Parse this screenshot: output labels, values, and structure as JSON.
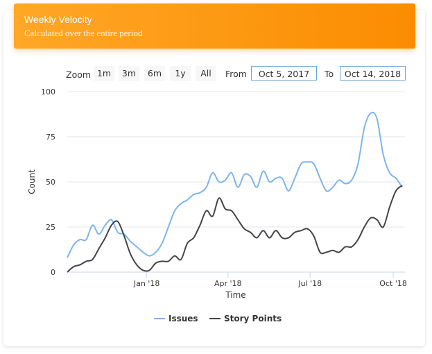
{
  "header": {
    "title": "Weekly Velocity",
    "subtitle": "Calculated over the entire period"
  },
  "range_selector": {
    "zoom_label": "Zoom",
    "buttons": [
      "1m",
      "3m",
      "6m",
      "1y",
      "All"
    ],
    "from_label": "From",
    "from_value": "Oct 5, 2017",
    "to_label": "To",
    "to_value": "Oct 14, 2018"
  },
  "chart_data": {
    "type": "line",
    "xlabel": "Time",
    "ylabel": "Count",
    "ylim": [
      0,
      100
    ],
    "yticks": [
      0,
      25,
      50,
      75,
      100
    ],
    "xlim": [
      "2017-10-05",
      "2018-10-14"
    ],
    "xticks": [
      {
        "date": "2018-01-01",
        "label": "Jan '18"
      },
      {
        "date": "2018-04-01",
        "label": "Apr '18"
      },
      {
        "date": "2018-07-01",
        "label": "Jul '18"
      },
      {
        "date": "2018-10-01",
        "label": "Oct '18"
      }
    ],
    "grid": true,
    "legend": "bottom-center",
    "series": [
      {
        "name": "Issues",
        "color": "#7cb5ec",
        "points": [
          [
            "2017-10-05",
            8
          ],
          [
            "2017-10-12",
            15
          ],
          [
            "2017-10-19",
            18
          ],
          [
            "2017-10-26",
            18
          ],
          [
            "2017-11-02",
            26
          ],
          [
            "2017-11-09",
            21
          ],
          [
            "2017-11-16",
            26
          ],
          [
            "2017-11-23",
            29
          ],
          [
            "2017-11-30",
            22
          ],
          [
            "2017-12-07",
            21
          ],
          [
            "2017-12-14",
            17
          ],
          [
            "2017-12-21",
            14
          ],
          [
            "2017-12-28",
            11
          ],
          [
            "2018-01-04",
            9
          ],
          [
            "2018-01-11",
            11
          ],
          [
            "2018-01-18",
            16
          ],
          [
            "2018-01-25",
            25
          ],
          [
            "2018-02-01",
            34
          ],
          [
            "2018-02-08",
            38
          ],
          [
            "2018-02-15",
            40
          ],
          [
            "2018-02-22",
            43
          ],
          [
            "2018-03-01",
            44
          ],
          [
            "2018-03-08",
            47
          ],
          [
            "2018-03-15",
            55
          ],
          [
            "2018-03-22",
            50
          ],
          [
            "2018-03-29",
            51
          ],
          [
            "2018-04-05",
            55
          ],
          [
            "2018-04-12",
            47
          ],
          [
            "2018-04-19",
            54
          ],
          [
            "2018-04-26",
            53
          ],
          [
            "2018-05-03",
            47
          ],
          [
            "2018-05-10",
            56
          ],
          [
            "2018-05-17",
            50
          ],
          [
            "2018-05-24",
            52
          ],
          [
            "2018-05-31",
            52
          ],
          [
            "2018-06-07",
            45
          ],
          [
            "2018-06-14",
            52
          ],
          [
            "2018-06-21",
            60
          ],
          [
            "2018-06-28",
            61
          ],
          [
            "2018-07-05",
            60
          ],
          [
            "2018-07-12",
            52
          ],
          [
            "2018-07-19",
            45
          ],
          [
            "2018-07-26",
            47
          ],
          [
            "2018-08-02",
            51
          ],
          [
            "2018-08-09",
            49
          ],
          [
            "2018-08-16",
            51
          ],
          [
            "2018-08-23",
            60
          ],
          [
            "2018-08-30",
            80
          ],
          [
            "2018-09-06",
            88
          ],
          [
            "2018-09-13",
            85
          ],
          [
            "2018-09-20",
            65
          ],
          [
            "2018-09-27",
            55
          ],
          [
            "2018-10-04",
            52
          ],
          [
            "2018-10-11",
            47
          ]
        ]
      },
      {
        "name": "Story Points",
        "color": "#434348",
        "points": [
          [
            "2017-10-05",
            0
          ],
          [
            "2017-10-12",
            3
          ],
          [
            "2017-10-19",
            4
          ],
          [
            "2017-10-26",
            6
          ],
          [
            "2017-11-02",
            7
          ],
          [
            "2017-11-09",
            13
          ],
          [
            "2017-11-16",
            19
          ],
          [
            "2017-11-23",
            26
          ],
          [
            "2017-11-30",
            28
          ],
          [
            "2017-12-07",
            20
          ],
          [
            "2017-12-14",
            10
          ],
          [
            "2017-12-21",
            4
          ],
          [
            "2017-12-28",
            1
          ],
          [
            "2018-01-04",
            1
          ],
          [
            "2018-01-11",
            5
          ],
          [
            "2018-01-18",
            6
          ],
          [
            "2018-01-25",
            6
          ],
          [
            "2018-02-01",
            9
          ],
          [
            "2018-02-08",
            7
          ],
          [
            "2018-02-15",
            16
          ],
          [
            "2018-02-22",
            19
          ],
          [
            "2018-03-01",
            26
          ],
          [
            "2018-03-08",
            34
          ],
          [
            "2018-03-15",
            31
          ],
          [
            "2018-03-22",
            41
          ],
          [
            "2018-03-29",
            35
          ],
          [
            "2018-04-05",
            34
          ],
          [
            "2018-04-12",
            29
          ],
          [
            "2018-04-19",
            24
          ],
          [
            "2018-04-26",
            22
          ],
          [
            "2018-05-03",
            19
          ],
          [
            "2018-05-10",
            23
          ],
          [
            "2018-05-17",
            19
          ],
          [
            "2018-05-24",
            23
          ],
          [
            "2018-05-31",
            19
          ],
          [
            "2018-06-07",
            19
          ],
          [
            "2018-06-14",
            22
          ],
          [
            "2018-06-21",
            23
          ],
          [
            "2018-06-28",
            24
          ],
          [
            "2018-07-05",
            20
          ],
          [
            "2018-07-12",
            11
          ],
          [
            "2018-07-19",
            11
          ],
          [
            "2018-07-26",
            12
          ],
          [
            "2018-08-02",
            11
          ],
          [
            "2018-08-09",
            14
          ],
          [
            "2018-08-16",
            14
          ],
          [
            "2018-08-23",
            18
          ],
          [
            "2018-08-30",
            25
          ],
          [
            "2018-09-06",
            30
          ],
          [
            "2018-09-13",
            29
          ],
          [
            "2018-09-20",
            25
          ],
          [
            "2018-09-27",
            36
          ],
          [
            "2018-10-04",
            45
          ],
          [
            "2018-10-11",
            48
          ]
        ]
      }
    ]
  }
}
